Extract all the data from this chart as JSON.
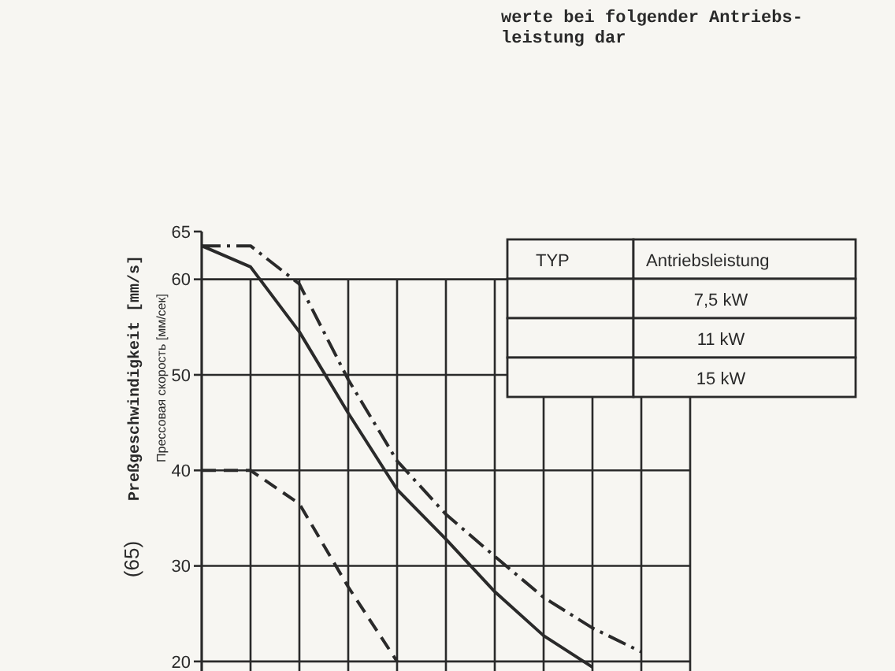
{
  "chart_data": {
    "type": "line",
    "ylabel": "Preßgeschwindigkeit [mm/s]",
    "y2label": "Прессовая скорость [мм/сек]",
    "annotations": [
      "werte bei folgender Antriebs-",
      "leistung dar",
      "(65)",
      "TYP",
      "Antriebsleistung",
      "7,5 kW",
      "11 kW",
      "15 kW"
    ],
    "categories": [
      null,
      null,
      null,
      null,
      null,
      null,
      null,
      null,
      null,
      null,
      null
    ],
    "series": [
      {
        "color": "#2a2a2a",
        "line_style": "solid",
        "values": [
          63.5,
          61.3,
          54.5,
          46,
          38,
          32.8,
          27.3,
          22.7,
          19.4,
          null,
          null
        ]
      },
      {
        "color": "#2a2a2a",
        "line_style": "dashdot",
        "values": [
          63.5,
          63.5,
          59.5,
          49.5,
          41,
          35.4,
          31,
          26.7,
          23.5,
          21,
          null
        ]
      },
      {
        "color": "#2a2a2a",
        "line_style": "dashed",
        "values": [
          40,
          40,
          36.5,
          27.8,
          20,
          null,
          null,
          null,
          null,
          null,
          null
        ]
      }
    ],
    "ylim": [
      19,
      65
    ],
    "yticks": [
      20,
      30,
      40,
      50,
      60,
      65
    ],
    "grid": true
  }
}
